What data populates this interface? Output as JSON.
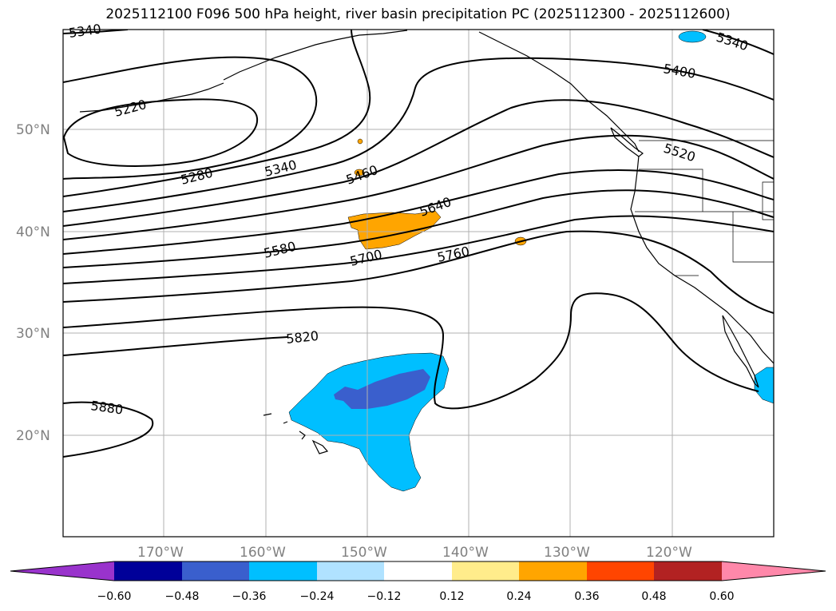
{
  "title": "2025112100 F096 500 hPa height, river basin precipitation PC (2025112300 - 2025112600)",
  "map": {
    "lat_labels": [
      "50°N",
      "40°N",
      "30°N",
      "20°N"
    ],
    "lon_labels": [
      "170°W",
      "160°W",
      "150°W",
      "140°W",
      "130°W",
      "120°W"
    ],
    "contour_labels": [
      "5340",
      "5220",
      "5280",
      "5340",
      "5460",
      "5340",
      "5400",
      "5520",
      "5580",
      "5640",
      "5700",
      "5760",
      "5820",
      "5880"
    ]
  },
  "colorbar": {
    "ticks": [
      "−0.60",
      "−0.48",
      "−0.36",
      "−0.24",
      "−0.12",
      "0.12",
      "0.24",
      "0.36",
      "0.48",
      "0.60"
    ],
    "colors": [
      "#9933cc",
      "#000099",
      "#3a5fcd",
      "#00bfff",
      "#b0e2ff",
      "#ffffff",
      "#ffec8b",
      "#ffa500",
      "#ff4500",
      "#b22222",
      "#ff88aa"
    ]
  }
}
